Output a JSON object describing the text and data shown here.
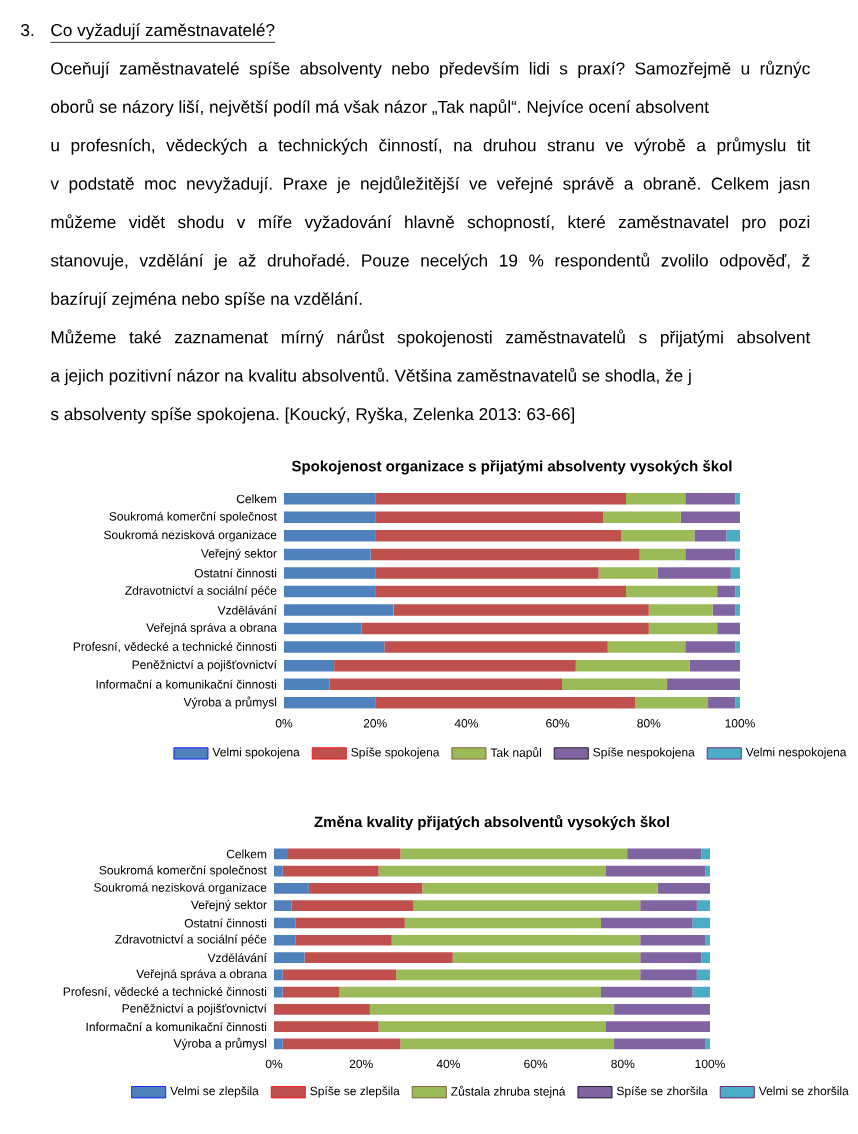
{
  "chart_data": [
    {
      "type": "bar",
      "orientation": "horizontal",
      "stacked": true,
      "title": "Spokojenost organizace s přijatými absolventy vysokých škol",
      "categories": [
        "Celkem",
        "Soukromá komerční společnost",
        "Soukromá nezisková organizace",
        "Veřejný sektor",
        "Ostatní činnosti",
        "Zdravotnictví a sociální péče",
        "Vzdělávání",
        "Veřejná správa a obrana",
        "Profesní, vědecké a technické činnosti",
        "Peněžnictví a pojišťovnictví",
        "Informační a komunikační činnosti",
        "Výroba a průmysl"
      ],
      "series": [
        {
          "name": "Velmi spokojena",
          "color": "#4f81bd",
          "values": [
            20,
            20,
            20,
            19,
            20,
            20,
            24,
            17,
            22,
            11,
            10,
            20
          ]
        },
        {
          "name": "Spíše spokojena",
          "color": "#c0504d",
          "values": [
            55,
            50,
            54,
            59,
            49,
            55,
            56,
            63,
            49,
            53,
            51,
            57
          ]
        },
        {
          "name": "Tak napůl",
          "color": "#9bbb59",
          "values": [
            13,
            17,
            16,
            10,
            13,
            20,
            14,
            15,
            17,
            25,
            23,
            16
          ]
        },
        {
          "name": "Spíše nespokojena",
          "color": "#8064a2",
          "values": [
            11,
            13,
            7,
            11,
            16,
            4,
            5,
            5,
            11,
            11,
            16,
            6
          ]
        },
        {
          "name": "Velmi nespokojena",
          "color": "#4bacc6",
          "values": [
            1,
            0,
            3,
            1,
            2,
            1,
            1,
            0,
            1,
            0,
            0,
            1
          ]
        }
      ],
      "xlim": [
        0,
        100
      ],
      "xticks": [
        {
          "value": 0,
          "label": "0%"
        },
        {
          "value": 20,
          "label": "20%"
        },
        {
          "value": 40,
          "label": "40%"
        },
        {
          "value": 60,
          "label": "60%"
        },
        {
          "value": 80,
          "label": "80%"
        },
        {
          "value": 100,
          "label": "100%"
        }
      ],
      "legend": "bottom",
      "annotations": [
        "3.",
        "Co vyžadují zaměstnavatelé?",
        "Oceňují zaměstnavatelé spíše absolventy nebo především lidi s praxí? Samozřejmě u různýc",
        "oborů se názory liší, největší podíl má však názor „Tak napůl“. Nejvíce ocení absolvent",
        "u profesních, vědeckých a technických činností, na druhou stranu ve výrobě a průmyslu tit",
        "v podstatě moc nevyžadují. Praxe je nejdůležitější ve veřejné správě a obraně. Celkem jasn",
        "můžeme vidět shodu v míře vyžadování hlavně schopností, které zaměstnavatel pro pozi",
        "stanovuje, vzdělání je až druhořadé. Pouze necelých 19 % respondentů zvolilo odpověď, ž",
        "bazírují zejména nebo spíše na vzdělání.",
        "Můžeme také zaznamenat mírný nárůst spokojenosti zaměstnavatelů s přijatými absolvent",
        "a jejich pozitivní názor na kvalitu absolventů. Většina zaměstnavatelů se shodla, že j",
        "s absolventy spíše spokojena. [Koucký, Ryška, Zelenka 2013: 63-66]"
      ]
    },
    {
      "type": "bar",
      "orientation": "horizontal",
      "stacked": true,
      "title": "Změna kvality přijatých absolventů vysokých škol",
      "categories": [
        "Celkem",
        "Soukromá komerční společnost",
        "Soukromá nezisková organizace",
        "Veřejný sektor",
        "Ostatní činnosti",
        "Zdravotnictví a sociální péče",
        "Vzdělávání",
        "Veřejná správa a obrana",
        "Profesní, vědecké a technické činnosti",
        "Peněžnictví a pojišťovnictví",
        "Informační a komunikační činnosti",
        "Výroba a průmysl"
      ],
      "series": [
        {
          "name": "Velmi se zlepšila",
          "color": "#4f81bd",
          "values": [
            3,
            2,
            8,
            4,
            5,
            5,
            7,
            2,
            2,
            0,
            0,
            2
          ]
        },
        {
          "name": "Spíše se zlepšila",
          "color": "#c0504d",
          "values": [
            26,
            22,
            26,
            28,
            25,
            22,
            34,
            26,
            13,
            22,
            24,
            27
          ]
        },
        {
          "name": "Zůstala zhruba stejná",
          "color": "#9bbb59",
          "values": [
            52,
            52,
            54,
            52,
            45,
            57,
            43,
            56,
            60,
            56,
            52,
            49
          ]
        },
        {
          "name": "Spíše se zhoršila",
          "color": "#8064a2",
          "values": [
            17,
            23,
            12,
            13,
            21,
            15,
            14,
            13,
            21,
            22,
            24,
            21
          ]
        },
        {
          "name": "Velmi se zhoršila",
          "color": "#4bacc6",
          "values": [
            2,
            1,
            0,
            3,
            4,
            1,
            2,
            3,
            4,
            0,
            0,
            1
          ]
        }
      ],
      "xlim": [
        0,
        100
      ],
      "xticks": [
        {
          "value": 0,
          "label": "0%"
        },
        {
          "value": 20,
          "label": "20%"
        },
        {
          "value": 40,
          "label": "40%"
        },
        {
          "value": 60,
          "label": "60%"
        },
        {
          "value": 80,
          "label": "80%"
        },
        {
          "value": 100,
          "label": "100%"
        }
      ],
      "legend": "bottom"
    }
  ]
}
